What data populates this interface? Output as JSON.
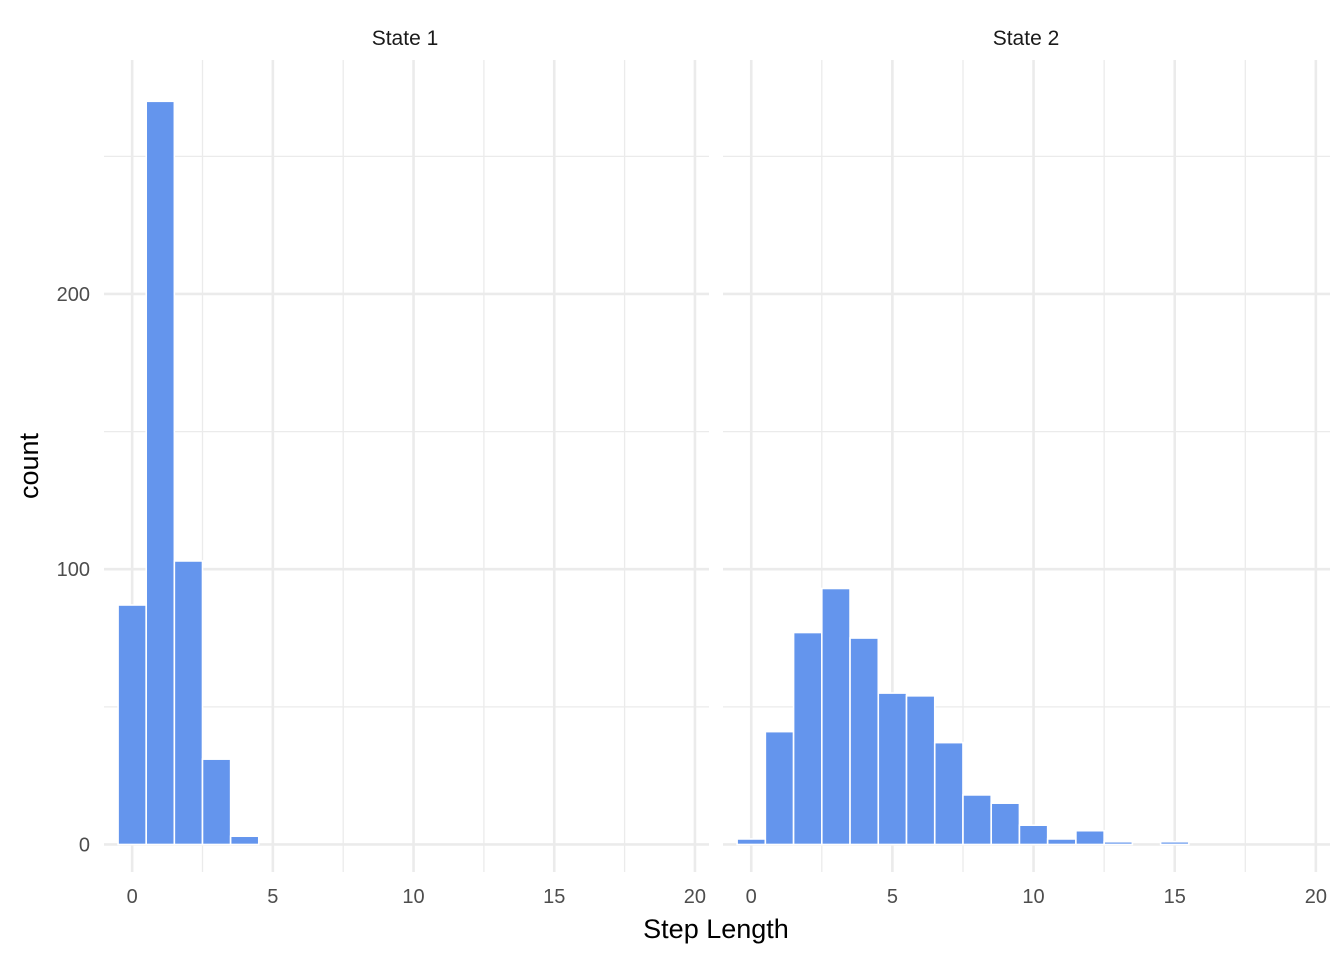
{
  "chart_data": {
    "type": "bar",
    "subtype": "faceted-histogram",
    "xlabel": "Step Length",
    "ylabel": "count",
    "xlim": [
      -1,
      20.5
    ],
    "ylim": [
      -10,
      285
    ],
    "x_ticks": [
      0,
      5,
      10,
      15,
      20
    ],
    "y_ticks": [
      0,
      100,
      200
    ],
    "bin_width": 1,
    "grid": true,
    "legend": "none",
    "colors": {
      "bar": "#6495ED",
      "grid": "#EBEBEB"
    },
    "facets": [
      {
        "label": "State 1",
        "bin_centers": [
          0,
          1,
          2,
          3,
          4
        ],
        "counts": [
          87,
          270,
          103,
          31,
          3
        ]
      },
      {
        "label": "State 2",
        "bin_centers": [
          0,
          1,
          2,
          3,
          4,
          5,
          6,
          7,
          8,
          9,
          10,
          11,
          12,
          13,
          14,
          15
        ],
        "counts": [
          2,
          41,
          77,
          93,
          75,
          55,
          54,
          37,
          18,
          15,
          7,
          2,
          5,
          1,
          0,
          1
        ]
      }
    ]
  }
}
